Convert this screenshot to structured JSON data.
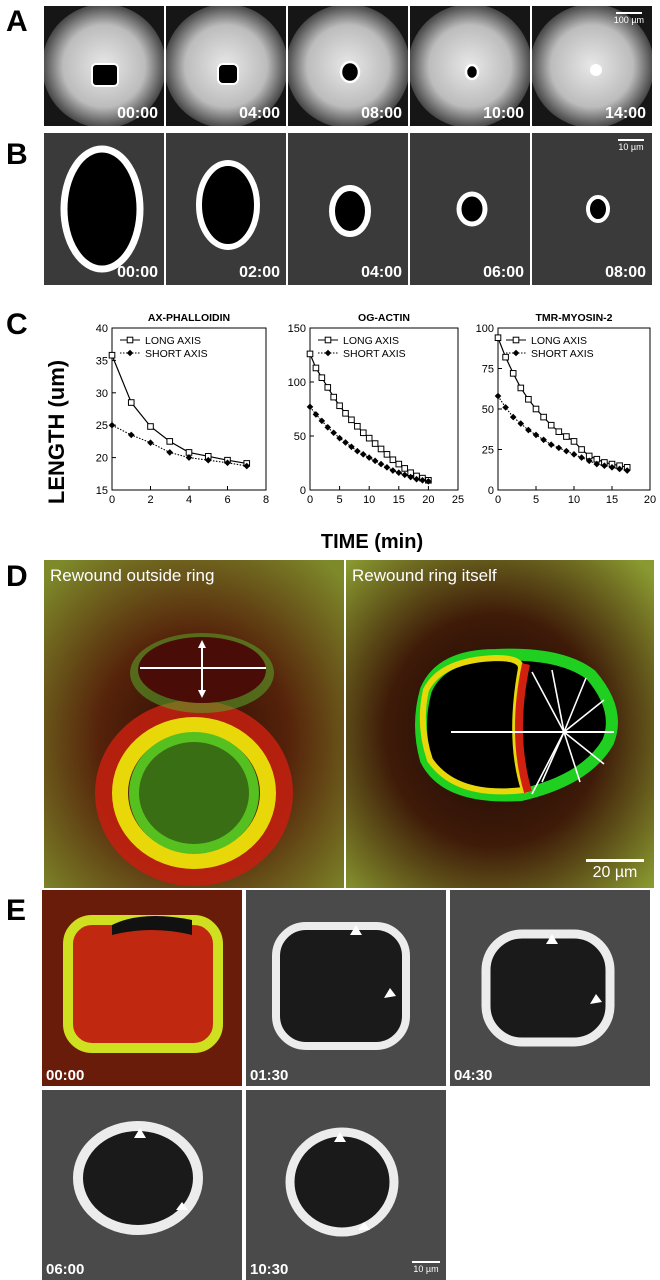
{
  "panels": {
    "A": {
      "label": "A",
      "scale_bar": "100 µm",
      "timestamps": [
        "00:00",
        "04:00",
        "08:00",
        "10:00",
        "14:00"
      ]
    },
    "B": {
      "label": "B",
      "scale_bar": "10 µm",
      "timestamps": [
        "00:00",
        "02:00",
        "04:00",
        "06:00",
        "08:00"
      ]
    },
    "C": {
      "label": "C",
      "ylabel": "LENGTH (um)",
      "xlabel": "TIME (min)"
    },
    "D": {
      "label": "D",
      "left_title": "Rewound outside ring",
      "right_title": "Rewound ring itself",
      "scale_bar": "20 µm"
    },
    "E": {
      "label": "E",
      "timestamps": [
        "00:00",
        "01:30",
        "04:30",
        "06:00",
        "10:30"
      ],
      "scale_bar": "10 µm"
    }
  },
  "chart_data": [
    {
      "type": "line",
      "title": "AX-PHALLOIDIN",
      "xlim": [
        0,
        8
      ],
      "ylim": [
        15,
        40
      ],
      "xticks": [
        0,
        2,
        4,
        6,
        8
      ],
      "yticks": [
        15,
        20,
        25,
        30,
        35,
        40
      ],
      "x": [
        0,
        1,
        2,
        3,
        4,
        5,
        6,
        7
      ],
      "series": [
        {
          "name": "LONG AXIS",
          "marker": "square",
          "line": "solid",
          "values": [
            35.8,
            28.5,
            24.8,
            22.5,
            20.8,
            20.2,
            19.6,
            19.1
          ]
        },
        {
          "name": "SHORT AXIS",
          "marker": "diamond",
          "line": "dotted",
          "values": [
            25.0,
            23.5,
            22.3,
            20.8,
            20.0,
            19.6,
            19.2,
            18.7
          ]
        }
      ]
    },
    {
      "type": "line",
      "title": "OG-ACTIN",
      "xlim": [
        0,
        25
      ],
      "ylim": [
        0,
        150
      ],
      "xticks": [
        0,
        5,
        10,
        15,
        20,
        25
      ],
      "yticks": [
        0,
        50,
        100,
        150
      ],
      "x": [
        0,
        1,
        2,
        3,
        4,
        5,
        6,
        7,
        8,
        9,
        10,
        11,
        12,
        13,
        14,
        15,
        16,
        17,
        18,
        19,
        20
      ],
      "series": [
        {
          "name": "LONG AXIS",
          "marker": "square",
          "line": "solid",
          "values": [
            126,
            113,
            104,
            95,
            86,
            78,
            71,
            65,
            59,
            53,
            48,
            43,
            38,
            33,
            28,
            24,
            20,
            16,
            13,
            11,
            9
          ]
        },
        {
          "name": "SHORT AXIS",
          "marker": "diamond",
          "line": "dotted",
          "values": [
            77,
            70,
            64,
            58,
            53,
            48,
            44,
            40,
            36,
            33,
            30,
            27,
            24,
            21,
            18,
            16,
            14,
            12,
            10,
            9,
            8
          ]
        }
      ]
    },
    {
      "type": "line",
      "title": "TMR-MYOSIN-2",
      "xlim": [
        0,
        20
      ],
      "ylim": [
        0,
        100
      ],
      "xticks": [
        0,
        5,
        10,
        15,
        20
      ],
      "yticks": [
        0,
        25,
        50,
        75,
        100
      ],
      "x": [
        0,
        1,
        2,
        3,
        4,
        5,
        6,
        7,
        8,
        9,
        10,
        11,
        12,
        13,
        14,
        15,
        16,
        17
      ],
      "series": [
        {
          "name": "LONG AXIS",
          "marker": "square",
          "line": "solid",
          "values": [
            94,
            82,
            72,
            63,
            56,
            50,
            45,
            40,
            36,
            33,
            30,
            25,
            21,
            19,
            17,
            16,
            15,
            14
          ]
        },
        {
          "name": "SHORT AXIS",
          "marker": "diamond",
          "line": "dotted",
          "values": [
            58,
            51,
            45,
            41,
            37,
            34,
            31,
            28,
            26,
            24,
            22,
            20,
            18,
            16,
            15,
            14,
            13,
            12
          ]
        }
      ]
    }
  ]
}
